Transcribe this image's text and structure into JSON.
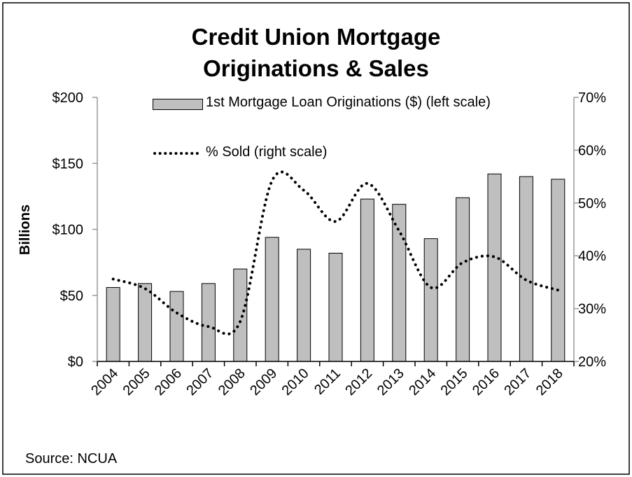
{
  "chart_data": {
    "type": "bar_line",
    "title": "Credit Union Mortgage Originations & Sales",
    "y_label": "Billions",
    "source": "Source: NCUA",
    "categories": [
      "2004",
      "2005",
      "2006",
      "2007",
      "2008",
      "2009",
      "2010",
      "2011",
      "2012",
      "2013",
      "2014",
      "2015",
      "2016",
      "2017",
      "2018"
    ],
    "series": [
      {
        "name": "1st Mortgage Loan Originations ($) (left scale)",
        "type": "bar",
        "color": "#bfbfbf",
        "values": [
          56,
          59,
          53,
          59,
          70,
          94,
          85,
          82,
          123,
          119,
          93,
          124,
          142,
          140,
          138
        ]
      },
      {
        "name": "% Sold (right scale)",
        "type": "line",
        "axis": "y2",
        "color": "#000000",
        "values": [
          35.6,
          33.8,
          29.2,
          26.6,
          27.6,
          54.2,
          52.4,
          46.5,
          53.7,
          44.7,
          34,
          38.7,
          39.8,
          35.4,
          33.5
        ]
      }
    ],
    "ylim": [
      0,
      200
    ],
    "yticks": [
      {
        "value": 0,
        "label": "$0"
      },
      {
        "value": 50,
        "label": "$50"
      },
      {
        "value": 100,
        "label": "$100"
      },
      {
        "value": 150,
        "label": "$150"
      },
      {
        "value": 200,
        "label": "$200"
      }
    ],
    "y2lim": [
      20,
      70
    ],
    "y2ticks": [
      {
        "value": 20,
        "label": "20%"
      },
      {
        "value": 30,
        "label": "30%"
      },
      {
        "value": 40,
        "label": "40%"
      },
      {
        "value": 50,
        "label": "50%"
      },
      {
        "value": 60,
        "label": "60%"
      },
      {
        "value": 70,
        "label": "70%"
      }
    ]
  }
}
